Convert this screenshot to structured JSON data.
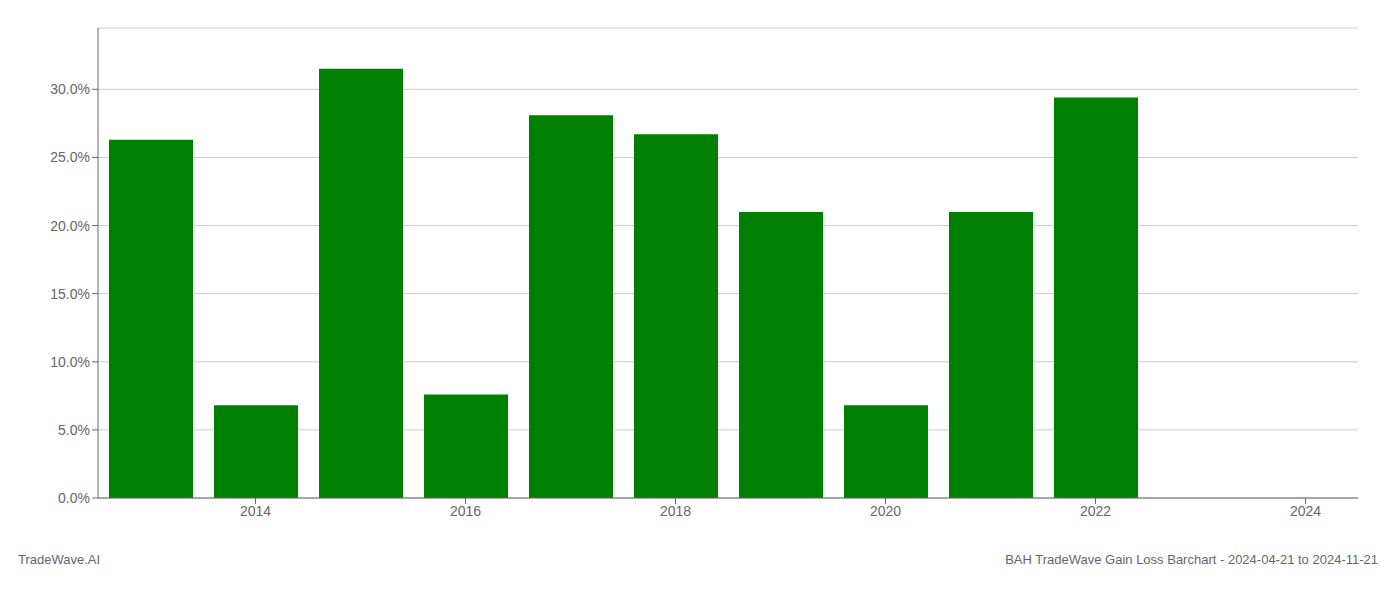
{
  "chart_data": {
    "type": "bar",
    "x": [
      2013,
      2014,
      2015,
      2016,
      2017,
      2018,
      2019,
      2020,
      2021,
      2022,
      2023
    ],
    "values": [
      0.263,
      0.068,
      0.315,
      0.076,
      0.281,
      0.267,
      0.21,
      0.068,
      0.21,
      0.294,
      0.0
    ],
    "color": "#008000",
    "xlim": [
      2012.5,
      2024.5
    ],
    "xticks": [
      2014,
      2016,
      2018,
      2020,
      2022,
      2024
    ],
    "ylim": [
      0,
      0.345
    ],
    "yticks": [
      {
        "value": 0.0,
        "label": "0.0%"
      },
      {
        "value": 0.05,
        "label": "5.0%"
      },
      {
        "value": 0.1,
        "label": "10.0%"
      },
      {
        "value": 0.15,
        "label": "15.0%"
      },
      {
        "value": 0.2,
        "label": "20.0%"
      },
      {
        "value": 0.25,
        "label": "25.0%"
      },
      {
        "value": 0.3,
        "label": "30.0%"
      }
    ],
    "grid": true,
    "annotations": [
      "TradeWave.AI",
      "BAH TradeWave Gain Loss Barchart - 2024-04-21 to 2024-11-21"
    ]
  }
}
